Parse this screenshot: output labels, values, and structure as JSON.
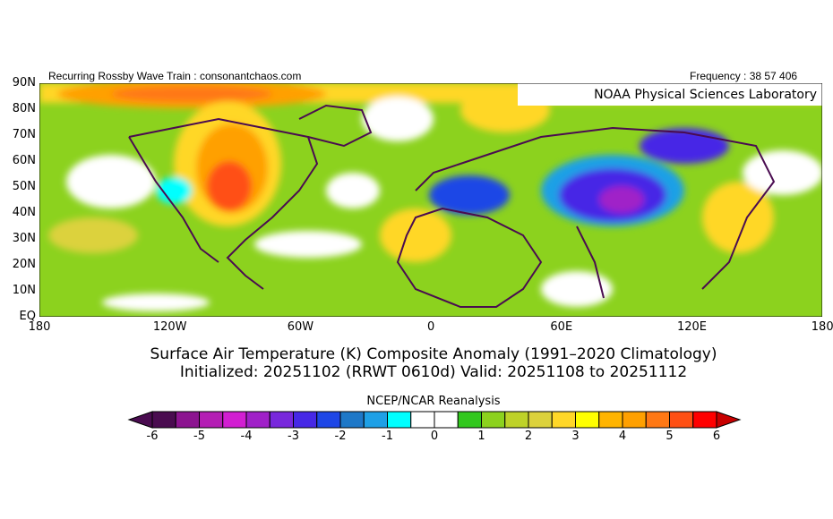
{
  "header": {
    "left_text": "Recurring Rossby Wave Train : consonantchaos.com",
    "right_text": "Frequency : 38 57 406",
    "lab_label": "NOAA Physical Sciences Laboratory"
  },
  "map": {
    "lat_labels": [
      "90N",
      "80N",
      "70N",
      "60N",
      "50N",
      "40N",
      "30N",
      "20N",
      "10N",
      "EQ"
    ],
    "lon_labels": [
      "180",
      "120W",
      "60W",
      "0",
      "60E",
      "120E",
      "180"
    ]
  },
  "titles": {
    "line1": "Surface Air Temperature (K) Composite Anomaly (1991–2020 Climatology)",
    "line2": "Initialized: 20251102 (RRWT 0610d) Valid: 20251108 to 20251112"
  },
  "colorbar": {
    "label": "NCEP/NCAR Reanalysis",
    "tick_labels": [
      "-6",
      "-5",
      "-4",
      "-3",
      "-2",
      "-1",
      "0",
      "1",
      "2",
      "3",
      "4",
      "5",
      "6"
    ],
    "colors": [
      "#4a0c50",
      "#8c1490",
      "#b41eb4",
      "#d21ed2",
      "#a020c8",
      "#7828dc",
      "#4628e6",
      "#1e46e6",
      "#1e78c8",
      "#1ea0e6",
      "#00ffff",
      "#ffffff",
      "#ffffff",
      "#32c81e",
      "#8cd21e",
      "#bed228",
      "#dcd23c",
      "#ffd728",
      "#ffff00",
      "#ffb400",
      "#ffa000",
      "#ff7814",
      "#ff5014",
      "#ff0000"
    ],
    "low_color": "#4a0c50",
    "high_color": "#c80000"
  }
}
